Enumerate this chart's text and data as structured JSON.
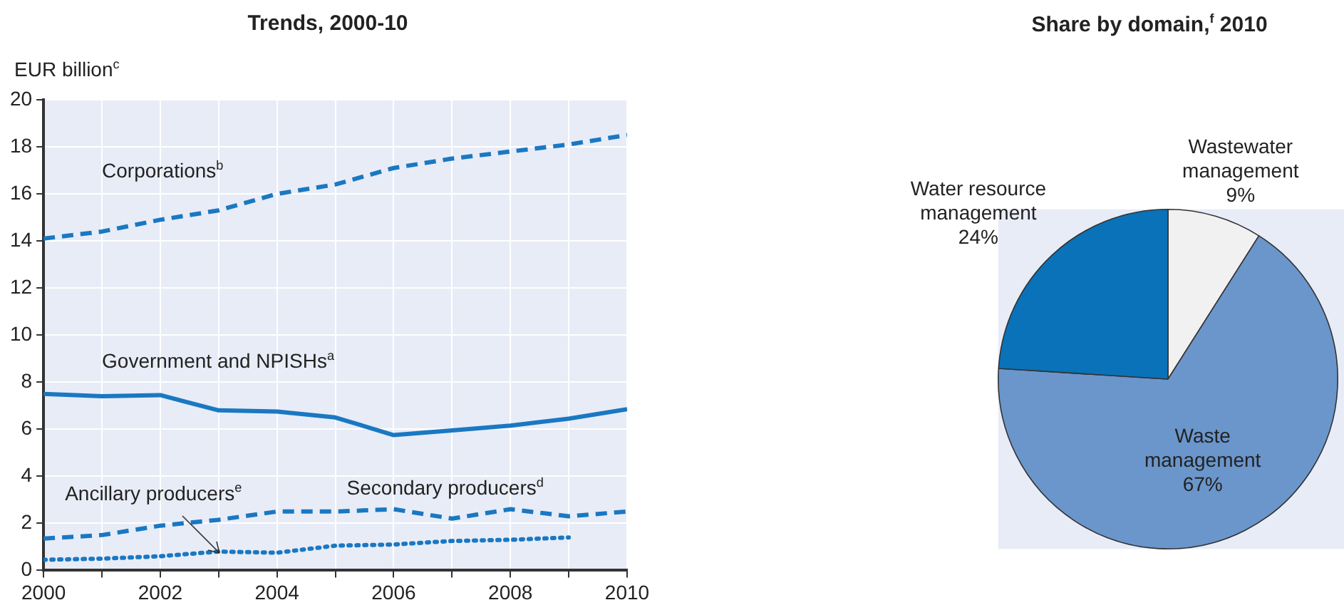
{
  "chart_data": [
    {
      "type": "line",
      "title": "Trends, 2000-10",
      "ylabel": "EUR billion$^{c}$",
      "x": [
        2000,
        2001,
        2002,
        2003,
        2004,
        2005,
        2006,
        2007,
        2008,
        2009,
        2010
      ],
      "series": [
        {
          "name": "Corporations$^{b}$",
          "color": "#1a78c2",
          "line_style": "dashed",
          "values": [
            14.1,
            14.4,
            14.9,
            15.3,
            16.0,
            16.4,
            17.1,
            17.5,
            17.8,
            18.1,
            18.5
          ]
        },
        {
          "name": "Government and NPISHs$^{a}$",
          "color": "#1a78c2",
          "line_style": "solid",
          "values": [
            7.5,
            7.4,
            7.45,
            6.8,
            6.75,
            6.5,
            5.75,
            5.95,
            6.15,
            6.45,
            6.85
          ]
        },
        {
          "name": "Secondary producers$^{d}$",
          "color": "#1a78c2",
          "line_style": "dashed",
          "values": [
            1.35,
            1.5,
            1.9,
            2.15,
            2.5,
            2.5,
            2.6,
            2.2,
            2.6,
            2.3,
            2.5
          ]
        },
        {
          "name": "Ancillary producers$^{e}$",
          "color": "#1a78c2",
          "line_style": "dotted",
          "values": [
            0.45,
            0.5,
            0.6,
            0.8,
            0.75,
            1.05,
            1.1,
            1.25,
            1.3,
            1.4,
            null
          ]
        }
      ],
      "xlim": [
        2000,
        2010
      ],
      "xticks": [
        2000,
        {
          "value": 2001,
          "label": null
        },
        2002,
        {
          "value": 2003,
          "label": null
        },
        2004,
        {
          "value": 2005,
          "label": null
        },
        2006,
        {
          "value": 2007,
          "label": null
        },
        2008,
        {
          "value": 2009,
          "label": null
        },
        2010
      ],
      "ylim": [
        0,
        20
      ],
      "yticks": [
        0,
        2,
        4,
        6,
        8,
        10,
        12,
        14,
        16,
        18,
        20
      ],
      "grid": true,
      "legend": false,
      "marker": "none"
    },
    {
      "type": "pie",
      "title": "Share by domain,$^{f}$ 2010",
      "categories": [
        "Wastewater management",
        "Waste management",
        "Water resource management"
      ],
      "values": [
        9,
        67,
        24
      ],
      "value_labels": [
        "9%",
        "67%",
        "24%"
      ],
      "colors": [
        "#f0f1f0",
        "#6a96cc",
        "#0a72b8"
      ],
      "legend": false
    }
  ]
}
